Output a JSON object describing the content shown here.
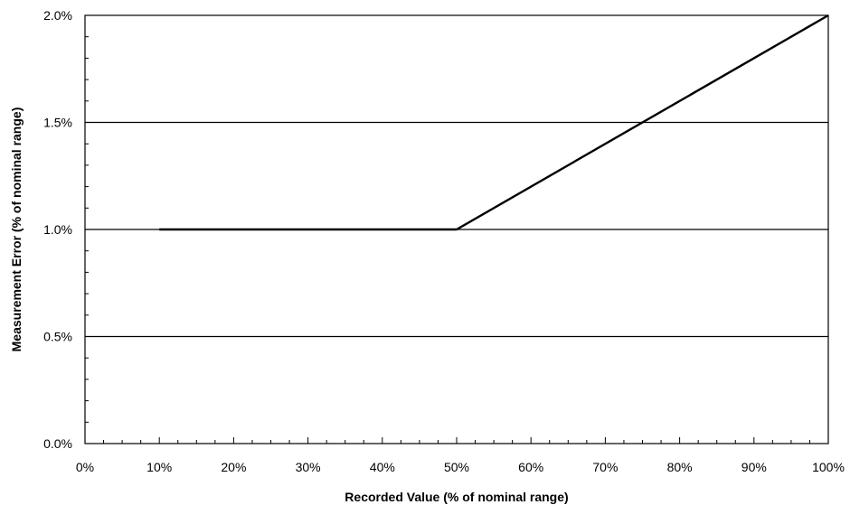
{
  "chart_data": {
    "type": "line",
    "title": "",
    "xlabel": "Recorded Value (% of nominal range)",
    "ylabel": "Measurement Error (% of nominal range)",
    "xlim": [
      0,
      100
    ],
    "ylim": [
      0,
      2.0
    ],
    "x_ticks": [
      0,
      10,
      20,
      30,
      40,
      50,
      60,
      70,
      80,
      90,
      100
    ],
    "x_tick_labels": [
      "0%",
      "10%",
      "20%",
      "30%",
      "40%",
      "50%",
      "60%",
      "70%",
      "80%",
      "90%",
      "100%"
    ],
    "y_ticks": [
      0,
      0.5,
      1.0,
      1.5,
      2.0
    ],
    "y_tick_labels": [
      "0.0%",
      "0.5%",
      "1.0%",
      "1.5%",
      "2.0%"
    ],
    "x_minor_step": 2.5,
    "y_minor_step": 0.1,
    "grid": "horizontal major",
    "legend": "none",
    "series": [
      {
        "x": [
          10,
          50,
          100
        ],
        "y": [
          1.0,
          1.0,
          2.0
        ],
        "color": "#000000"
      }
    ]
  }
}
